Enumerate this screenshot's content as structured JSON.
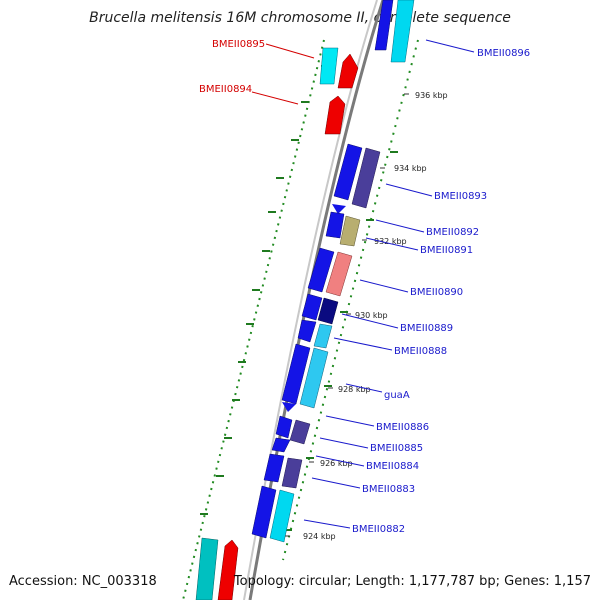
{
  "title": "Brucella melitensis 16M chromosome II, complete sequence",
  "accession": "Accession: NC_003318",
  "summary": "Topology: circular; Length: 1,177,787 bp; Genes: 1,157",
  "colors": {
    "backbone": "#888888",
    "gc_dots": "#228b22",
    "label_red": "#d40000",
    "label_blue": "#1a1acc",
    "tick_text": "#222222"
  },
  "ticks": [
    "924 kbp",
    "926 kbp",
    "928 kbp",
    "930 kbp",
    "932 kbp",
    "934 kbp",
    "936 kbp"
  ],
  "labels": [
    {
      "text": "BMEII0895",
      "color": "red"
    },
    {
      "text": "BMEII0894",
      "color": "red"
    },
    {
      "text": "BMEII0896",
      "color": "blue"
    },
    {
      "text": "BMEII0893",
      "color": "blue"
    },
    {
      "text": "BMEII0892",
      "color": "blue"
    },
    {
      "text": "BMEII0891",
      "color": "blue"
    },
    {
      "text": "BMEII0890",
      "color": "blue"
    },
    {
      "text": "BMEII0889",
      "color": "blue"
    },
    {
      "text": "BMEII0888",
      "color": "blue"
    },
    {
      "text": "guaA",
      "color": "blue"
    },
    {
      "text": "BMEII0886",
      "color": "blue"
    },
    {
      "text": "BMEII0885",
      "color": "blue"
    },
    {
      "text": "BMEII0884",
      "color": "blue"
    },
    {
      "text": "BMEII0883",
      "color": "blue"
    },
    {
      "text": "BMEII0882",
      "color": "blue"
    }
  ]
}
